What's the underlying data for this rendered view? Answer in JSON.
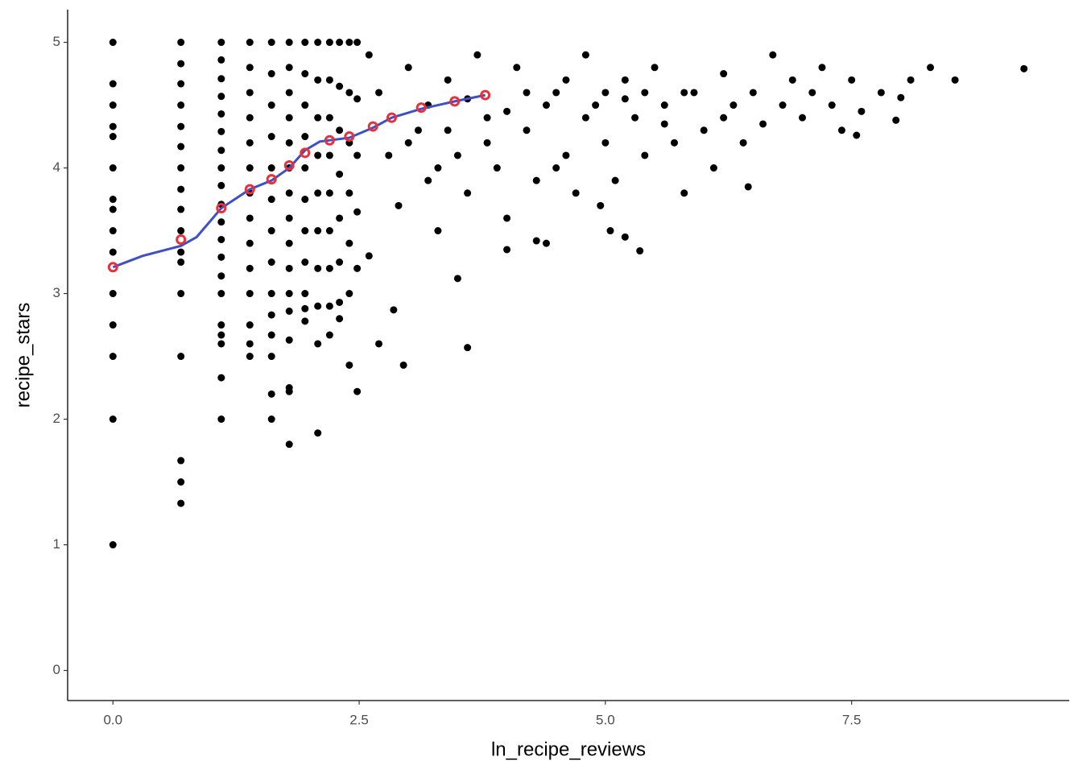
{
  "chart_data": {
    "type": "scatter",
    "x_label": "ln_recipe_reviews",
    "y_label": "recipe_stars",
    "xlim": [
      -0.46,
      9.71
    ],
    "ylim": [
      -0.24,
      5.26
    ],
    "xticks": [
      {
        "value": 0,
        "label": "0.0"
      },
      2.5,
      {
        "value": 5,
        "label": "5.0"
      },
      7.5
    ],
    "yticks": [
      0,
      1,
      2,
      3,
      4,
      5
    ],
    "grid": false,
    "series": [
      {
        "kind": "points",
        "color": "#000000",
        "x": [
          0,
          0,
          0,
          0,
          0,
          0,
          0,
          0,
          0,
          0,
          0,
          0,
          0,
          0,
          0,
          0.69,
          0.69,
          0.69,
          0.69,
          0.69,
          0.69,
          0.69,
          0.69,
          0.69,
          0.69,
          0.69,
          0.69,
          0.69,
          0.69,
          0.69,
          0.69,
          0.69,
          1.1,
          1.1,
          1.1,
          1.1,
          1.1,
          1.1,
          1.1,
          1.1,
          1.1,
          1.1,
          1.1,
          1.1,
          1.1,
          1.1,
          1.1,
          1.1,
          1.1,
          1.1,
          1.1,
          1.1,
          1.39,
          1.39,
          1.39,
          1.39,
          1.39,
          1.39,
          1.39,
          1.39,
          1.39,
          1.39,
          1.39,
          1.39,
          1.39,
          1.39,
          1.61,
          1.61,
          1.61,
          1.61,
          1.61,
          1.61,
          1.61,
          1.61,
          1.61,
          1.61,
          1.61,
          1.61,
          1.61,
          1.61,
          1.79,
          1.79,
          1.79,
          1.79,
          1.79,
          1.79,
          1.79,
          1.79,
          1.79,
          1.79,
          1.79,
          1.79,
          1.79,
          1.79,
          1.79,
          1.79,
          1.95,
          1.95,
          1.95,
          1.95,
          1.95,
          1.95,
          1.95,
          1.95,
          1.95,
          1.95,
          1.95,
          2.08,
          2.08,
          2.08,
          2.08,
          2.08,
          2.08,
          2.08,
          2.08,
          2.08,
          2.08,
          2.2,
          2.2,
          2.2,
          2.2,
          2.2,
          2.2,
          2.2,
          2.2,
          2.2,
          2.3,
          2.3,
          2.3,
          2.3,
          2.3,
          2.3,
          2.3,
          2.3,
          2.4,
          2.4,
          2.4,
          2.4,
          2.4,
          2.4,
          2.4,
          2.48,
          2.48,
          2.48,
          2.48,
          2.48,
          2.48,
          2.6,
          2.7,
          2.8,
          2.9,
          2.6,
          2.7,
          2.95,
          2.85,
          3.0,
          3.1,
          3.2,
          3.3,
          3.4,
          3.5,
          3.6,
          3.6,
          3.5,
          3.7,
          3.8,
          3.9,
          4.0,
          4.1,
          4.2,
          4.3,
          4.4,
          4.5,
          4.6,
          4.7,
          4.8,
          4.9,
          5.0,
          5.1,
          5.2,
          5.3,
          5.35,
          5.2,
          5.4,
          5.5,
          5.6,
          5.7,
          5.8,
          5.9,
          6.0,
          6.1,
          6.2,
          6.3,
          6.4,
          6.5,
          6.6,
          6.7,
          6.8,
          6.9,
          7.0,
          7.1,
          7.2,
          7.3,
          7.4,
          7.5,
          7.6,
          7.8,
          7.95,
          8.0,
          8.1,
          8.3,
          8.55,
          9.25,
          7.55,
          6.45,
          4.3,
          4.0,
          4.95,
          5.05,
          3.2,
          3.6,
          4.0,
          4.4,
          4.8,
          5.2,
          5.6,
          3.4,
          3.8,
          4.2,
          4.6,
          5.0,
          5.4,
          3.0,
          3.3,
          4.5,
          5.8,
          6.2
        ],
        "values": [
          5,
          4.67,
          4.5,
          4.33,
          4.25,
          4,
          3.75,
          3.67,
          3.5,
          3.33,
          3,
          2.75,
          2.5,
          2,
          1,
          5,
          4.83,
          4.67,
          4.5,
          4.33,
          4.17,
          4,
          3.83,
          3.67,
          3.5,
          3.33,
          3.25,
          3,
          2.5,
          1.67,
          1.5,
          1.33,
          5,
          4.86,
          4.71,
          4.57,
          4.43,
          4.29,
          4.14,
          4,
          3.86,
          3.71,
          3.57,
          3.43,
          3.29,
          3.14,
          3,
          2.75,
          2.67,
          2.6,
          2.33,
          2,
          5,
          4.8,
          4.6,
          4.4,
          4.2,
          4,
          3.8,
          3.6,
          3.4,
          3.2,
          3,
          2.75,
          2.6,
          2.5,
          5,
          4.75,
          4.5,
          4.25,
          4,
          3.75,
          3.5,
          3.25,
          3,
          2.83,
          2.67,
          2.5,
          2.2,
          2,
          5,
          4.8,
          4.6,
          4.4,
          4.2,
          4,
          3.8,
          3.6,
          3.4,
          3.2,
          3,
          2.86,
          2.63,
          2.25,
          2.22,
          1.8,
          5,
          4.75,
          4.5,
          4.25,
          4,
          3.75,
          3.5,
          3.25,
          3,
          2.88,
          2.78,
          5,
          4.7,
          4.4,
          4.1,
          3.8,
          3.5,
          3.2,
          2.9,
          2.6,
          1.89,
          5,
          4.7,
          4.4,
          4.1,
          3.8,
          3.5,
          3.2,
          2.9,
          2.67,
          5,
          4.65,
          4.3,
          3.95,
          3.6,
          3.25,
          2.93,
          2.8,
          5,
          4.6,
          4.2,
          3.8,
          3.4,
          3.0,
          2.43,
          5,
          4.55,
          4.1,
          3.65,
          3.2,
          2.22,
          4.9,
          4.6,
          4.1,
          3.7,
          3.3,
          2.6,
          2.43,
          2.87,
          4.8,
          4.3,
          3.9,
          3.5,
          4.7,
          4.1,
          3.8,
          2.57,
          3.12,
          4.9,
          4.4,
          4.0,
          3.6,
          4.8,
          4.3,
          3.9,
          3.4,
          4.6,
          4.1,
          3.8,
          4.9,
          4.5,
          4.2,
          3.9,
          4.7,
          4.4,
          3.34,
          3.45,
          4.1,
          4.8,
          4.5,
          4.2,
          3.8,
          4.6,
          4.3,
          4.0,
          4.75,
          4.5,
          4.2,
          4.6,
          4.35,
          4.9,
          4.5,
          4.7,
          4.4,
          4.6,
          4.8,
          4.5,
          4.3,
          4.7,
          4.45,
          4.6,
          4.38,
          4.56,
          4.7,
          4.8,
          4.7,
          4.79,
          4.26,
          3.85,
          3.42,
          3.35,
          3.7,
          3.5,
          4.5,
          4.55,
          4.45,
          4.5,
          4.4,
          4.55,
          4.35,
          4.3,
          4.2,
          4.6,
          4.7,
          4.6,
          4.6,
          4.2,
          4.0,
          4.0,
          4.6,
          4.4
        ]
      },
      {
        "kind": "line",
        "color": "#3f4fc4",
        "x": [
          0,
          0.3,
          0.69,
          0.85,
          1.1,
          1.39,
          1.61,
          1.79,
          1.95,
          2.1,
          2.4,
          2.64,
          2.83,
          3.13,
          3.47,
          3.78
        ],
        "values": [
          3.21,
          3.3,
          3.38,
          3.45,
          3.68,
          3.83,
          3.9,
          4.0,
          4.14,
          4.21,
          4.24,
          4.32,
          4.4,
          4.47,
          4.53,
          4.58
        ]
      },
      {
        "kind": "open-points",
        "color": "#e8303a",
        "x": [
          0,
          0.69,
          1.1,
          1.39,
          1.61,
          1.79,
          1.95,
          2.2,
          2.4,
          2.64,
          2.83,
          3.13,
          3.47,
          3.78
        ],
        "values": [
          3.21,
          3.43,
          3.68,
          3.83,
          3.91,
          4.02,
          4.12,
          4.22,
          4.25,
          4.33,
          4.4,
          4.48,
          4.53,
          4.58
        ]
      }
    ]
  }
}
